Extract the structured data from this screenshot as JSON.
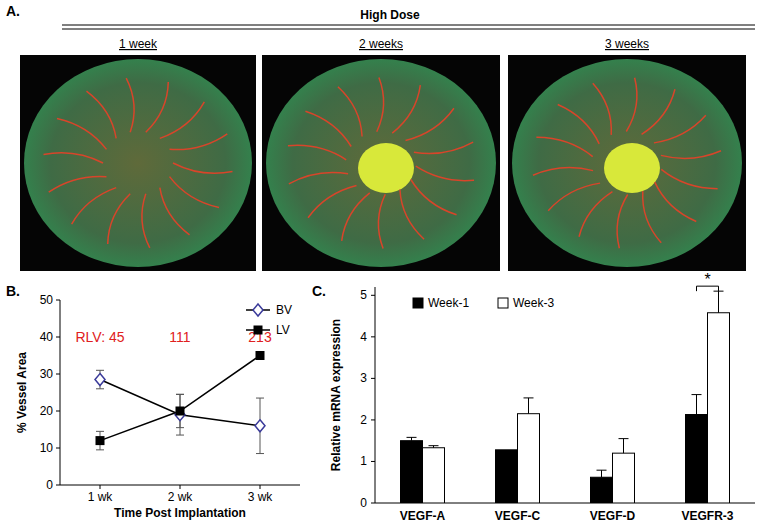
{
  "images": {
    "label": "A.",
    "title": "High Dose",
    "captions": [
      "1 week",
      "2 weeks",
      "3 weeks"
    ]
  },
  "chart_data": [
    {
      "type": "line",
      "title": "B.",
      "x_label": "Time Post Implantation",
      "y_label": "% Vessel Area",
      "categories": [
        "1 wk",
        "2 wk",
        "3 wk"
      ],
      "series": [
        {
          "name": "BV",
          "color": "#3a3a9a",
          "marker": "diamond",
          "values": [
            28.5,
            19,
            16
          ],
          "errors": [
            2.5,
            5.5,
            7.5
          ]
        },
        {
          "name": "LV",
          "color": "#000000",
          "marker": "square",
          "values": [
            12,
            20,
            35
          ],
          "errors": [
            2.5,
            4.5,
            1
          ]
        }
      ],
      "annotations": [
        "RLV: 45",
        "111",
        "213"
      ],
      "ylim": [
        0,
        50
      ],
      "yticks": [
        0,
        10,
        20,
        30,
        40,
        50
      ],
      "legend": "upper right",
      "grid": false
    },
    {
      "type": "bar",
      "title": "C.",
      "y_label": "Relative mRNA expression",
      "categories": [
        "VEGF-A",
        "VEGF-C",
        "VEGF-D",
        "VEGFR-3"
      ],
      "series": [
        {
          "name": "Week-1",
          "color": "#000000",
          "values": [
            1.5,
            1.28,
            0.62,
            2.13
          ],
          "errors": [
            0.08,
            null,
            0.17,
            0.48
          ]
        },
        {
          "name": "Week-3",
          "color": "#ffffff",
          "values": [
            1.33,
            2.15,
            1.2,
            4.58
          ],
          "errors": [
            0.05,
            0.38,
            0.35,
            0.52
          ]
        }
      ],
      "annotations": [
        {
          "text": "*",
          "category": "VEGFR-3"
        }
      ],
      "ylim": [
        0,
        5.2
      ],
      "yticks": [
        0,
        1,
        2,
        3,
        4,
        5
      ],
      "legend": "upper left",
      "grid": false
    }
  ]
}
